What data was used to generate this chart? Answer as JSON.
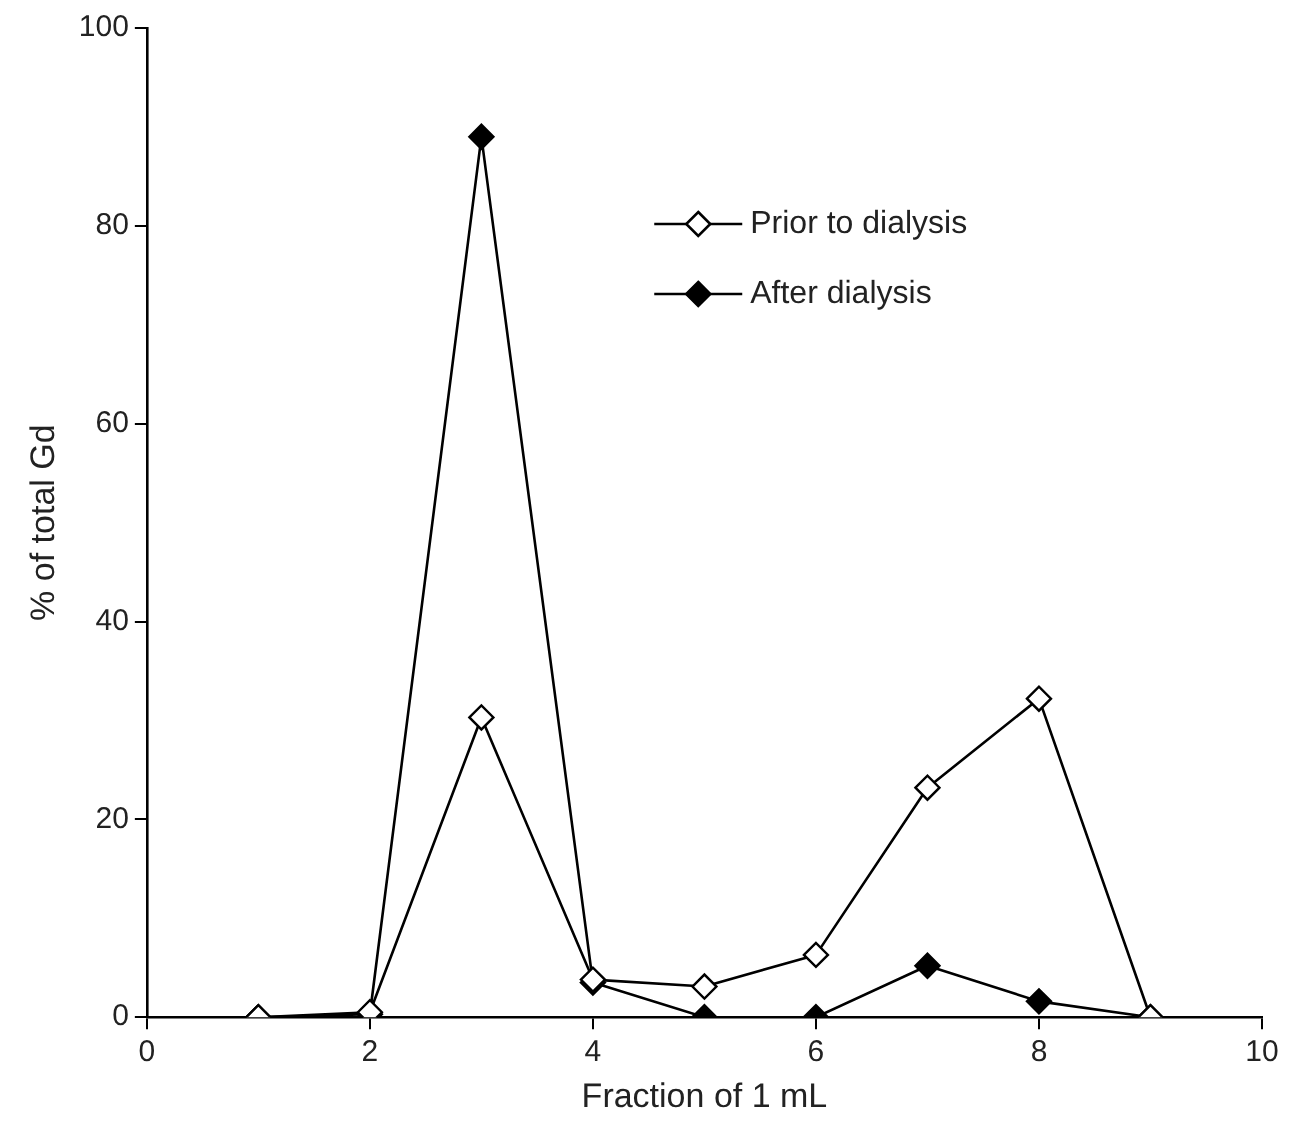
{
  "chart_data": {
    "type": "line",
    "xlabel": "Fraction of 1 mL",
    "ylabel": "% of total Gd",
    "x": [
      1,
      2,
      3,
      4,
      5,
      6,
      7,
      8,
      9
    ],
    "series": [
      {
        "name": "Prior to dialysis",
        "color": "#ffffff",
        "values": [
          0,
          0.5,
          30.3,
          3.8,
          3.1,
          6.3,
          23.2,
          32.2,
          0
        ]
      },
      {
        "name": "After dialysis",
        "color": "#000000",
        "values": [
          0,
          0.3,
          89,
          3.5,
          0,
          0,
          5.2,
          1.6,
          0
        ]
      }
    ],
    "xlim": [
      0,
      10
    ],
    "xticks": [
      0,
      2,
      4,
      6,
      8,
      10
    ],
    "ylim": [
      0,
      100
    ],
    "yticks": [
      0,
      20,
      40,
      60,
      80,
      100
    ],
    "grid": false,
    "legend": "top right",
    "marker": "diamond",
    "line_style": "solid"
  }
}
